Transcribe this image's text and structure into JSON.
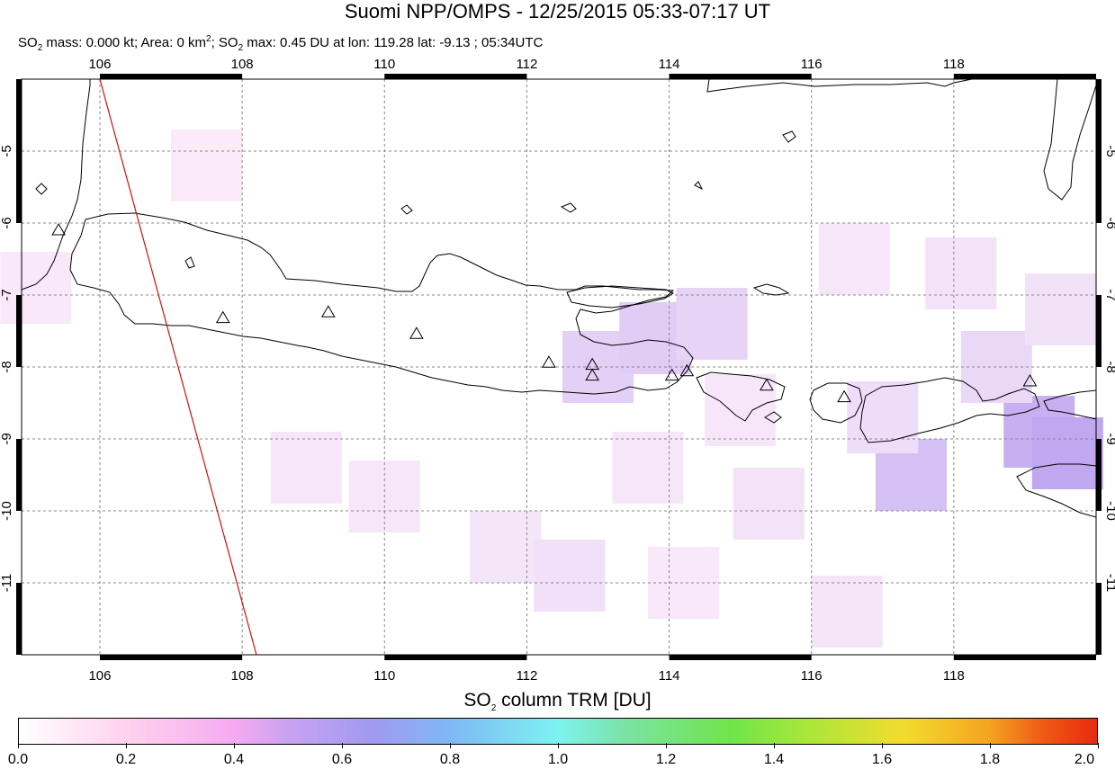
{
  "header": {
    "title": "Suomi NPP/OMPS - 12/25/2015 05:33-07:17 UT",
    "subtitle": {
      "so": "SO",
      "two": "2",
      "mass_text": " mass: 0.000 kt; Area: 0 km",
      "sq": "2",
      "sep": "; SO",
      "max_text": " max: 0.45 DU at lon: 119.28 lat: -9.13 ; 05:34UTC"
    }
  },
  "map": {
    "lon_range": [
      104.9,
      120.0
    ],
    "lat_range": [
      -12.0,
      -4.0
    ],
    "lon_ticks": [
      "106",
      "108",
      "110",
      "112",
      "114",
      "116",
      "118"
    ],
    "lat_ticks": [
      "-5",
      "-6",
      "-7",
      "-8",
      "-9",
      "-10",
      "-11"
    ],
    "grid": "dashed",
    "colors": {
      "coast": "#000000",
      "swath_edge": "#d01010",
      "grid": "#888888"
    },
    "swath_edge": [
      [
        106.0,
        -4.0
      ],
      [
        108.2,
        -12.0
      ]
    ],
    "volcanoes": [
      {
        "lon": 105.42,
        "lat": -6.1
      },
      {
        "lon": 107.73,
        "lat": -7.32
      },
      {
        "lon": 109.21,
        "lat": -7.24
      },
      {
        "lon": 110.45,
        "lat": -7.54
      },
      {
        "lon": 112.31,
        "lat": -7.94
      },
      {
        "lon": 112.92,
        "lat": -7.97
      },
      {
        "lon": 112.92,
        "lat": -8.12
      },
      {
        "lon": 114.04,
        "lat": -8.12
      },
      {
        "lon": 114.25,
        "lat": -8.06
      },
      {
        "lon": 115.37,
        "lat": -8.26
      },
      {
        "lon": 116.46,
        "lat": -8.42
      },
      {
        "lon": 119.07,
        "lat": -8.2
      }
    ],
    "so2_cells": [
      {
        "lon": 105.1,
        "lat": -6.9,
        "du": 0.05
      },
      {
        "lon": 107.5,
        "lat": -5.2,
        "du": 0.03
      },
      {
        "lon": 108.9,
        "lat": -9.4,
        "du": 0.06
      },
      {
        "lon": 110.0,
        "lat": -9.8,
        "du": 0.06
      },
      {
        "lon": 111.7,
        "lat": -10.5,
        "du": 0.07
      },
      {
        "lon": 112.6,
        "lat": -10.9,
        "du": 0.1
      },
      {
        "lon": 113.0,
        "lat": -8.0,
        "du": 0.2
      },
      {
        "lon": 113.8,
        "lat": -7.6,
        "du": 0.22
      },
      {
        "lon": 114.6,
        "lat": -7.4,
        "du": 0.18
      },
      {
        "lon": 115.0,
        "lat": -8.6,
        "du": 0.06
      },
      {
        "lon": 115.4,
        "lat": -9.9,
        "du": 0.08
      },
      {
        "lon": 116.6,
        "lat": -6.5,
        "du": 0.06
      },
      {
        "lon": 117.4,
        "lat": -9.5,
        "du": 0.3
      },
      {
        "lon": 117.0,
        "lat": -8.7,
        "du": 0.12
      },
      {
        "lon": 118.1,
        "lat": -6.7,
        "du": 0.08
      },
      {
        "lon": 119.2,
        "lat": -8.9,
        "du": 0.4
      },
      {
        "lon": 119.6,
        "lat": -9.2,
        "du": 0.45
      },
      {
        "lon": 118.6,
        "lat": -8.0,
        "du": 0.15
      },
      {
        "lon": 116.5,
        "lat": -11.4,
        "du": 0.07
      },
      {
        "lon": 114.2,
        "lat": -11.0,
        "du": 0.05
      },
      {
        "lon": 119.5,
        "lat": -7.2,
        "du": 0.09
      },
      {
        "lon": 113.7,
        "lat": -9.4,
        "du": 0.06
      }
    ]
  },
  "colorbar": {
    "title_a": "SO",
    "title_sub": "2",
    "title_b": " column TRM [DU]",
    "labels": [
      "0.0",
      "0.2",
      "0.4",
      "0.6",
      "0.8",
      "1.0",
      "1.2",
      "1.4",
      "1.6",
      "1.8",
      "2.0"
    ]
  }
}
